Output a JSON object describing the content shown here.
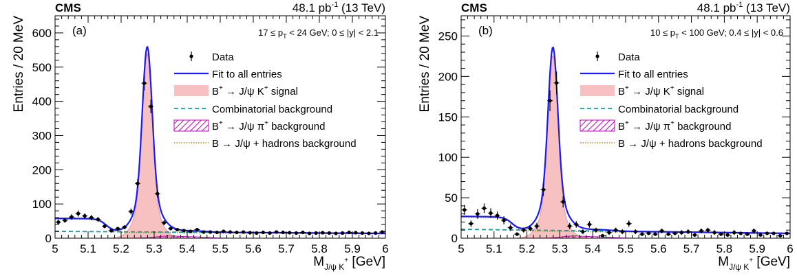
{
  "chart_data": [
    {
      "type": "scatter",
      "panel_label": "(a)",
      "experiment": "CMS",
      "lumi_value": "48.1 pb",
      "lumi_exp": "-1",
      "lumi_energy": "(13 TeV)",
      "cuts": "17 ≤ pT < 24 GeV; 0 ≤ |y| < 2.1",
      "cuts_parts": [
        "17 ≤ p",
        "T",
        " < 24 GeV; 0 ≤ |y| < 2.1"
      ],
      "ylabel": "Entries / 20 MeV",
      "xlabel_main": "M",
      "xlabel_sub": "J/ψ K",
      "xlabel_sup": "+",
      "xlabel_unit": " [GeV]",
      "xlim": [
        5.0,
        6.0
      ],
      "ylim": [
        0,
        650
      ],
      "xticks": [
        5,
        5.1,
        5.2,
        5.3,
        5.4,
        5.5,
        5.6,
        5.7,
        5.8,
        5.9,
        6
      ],
      "xticklabels": [
        "5",
        "5.1",
        "5.2",
        "5.3",
        "5.4",
        "5.5",
        "5.6",
        "5.7",
        "5.8",
        "5.9",
        "6"
      ],
      "yticks": [
        0,
        100,
        200,
        300,
        400,
        500,
        600
      ],
      "yticklabels": [
        "0",
        "100",
        "200",
        "300",
        "400",
        "500",
        "600"
      ],
      "model": {
        "sig_amp": 540,
        "sig_mean": 5.279,
        "sig_sigma": 0.0145,
        "comb_level": 20,
        "comb_slope": -6,
        "jpsipi_amp": 6,
        "hadr_amp": 38,
        "hadr_edge": 5.155
      },
      "data": {
        "x": [
          5.01,
          5.03,
          5.05,
          5.07,
          5.09,
          5.11,
          5.13,
          5.15,
          5.17,
          5.19,
          5.21,
          5.23,
          5.25,
          5.27,
          5.29,
          5.31,
          5.33,
          5.35,
          5.37,
          5.39,
          5.41,
          5.43,
          5.45,
          5.47,
          5.49,
          5.51,
          5.53,
          5.55,
          5.57,
          5.59,
          5.61,
          5.63,
          5.65,
          5.67,
          5.69,
          5.71,
          5.73,
          5.75,
          5.77,
          5.79,
          5.81,
          5.83,
          5.85,
          5.87,
          5.89,
          5.91,
          5.93,
          5.95,
          5.97,
          5.99
        ],
        "y": [
          47,
          52,
          62,
          72,
          65,
          60,
          55,
          35,
          22,
          28,
          32,
          78,
          160,
          453,
          385,
          130,
          45,
          28,
          25,
          22,
          20,
          25,
          18,
          18,
          17,
          20,
          18,
          17,
          18,
          16,
          15,
          17,
          15,
          18,
          17,
          16,
          15,
          17,
          14,
          15,
          16,
          15,
          14,
          15,
          17,
          16,
          15,
          14,
          15,
          18
        ],
        "err": [
          7,
          7,
          8,
          9,
          8,
          8,
          7,
          6,
          5,
          5,
          6,
          9,
          13,
          21,
          20,
          11,
          7,
          5,
          5,
          5,
          4,
          5,
          4,
          4,
          4,
          4,
          4,
          4,
          4,
          4,
          4,
          4,
          4,
          4,
          4,
          4,
          4,
          4,
          4,
          4,
          4,
          4,
          4,
          4,
          4,
          4,
          4,
          4,
          4,
          4
        ]
      }
    },
    {
      "type": "scatter",
      "panel_label": "(b)",
      "experiment": "CMS",
      "lumi_value": "48.1 pb",
      "lumi_exp": "-1",
      "lumi_energy": "(13 TeV)",
      "cuts": "10 ≤ pT < 100 GeV; 0.4 ≤ |y| < 0.6",
      "cuts_parts": [
        "10 ≤ p",
        "T",
        " < 100 GeV; 0.4 ≤ |y| < 0.6"
      ],
      "ylabel": "Entries / 20 MeV",
      "xlabel_main": "M",
      "xlabel_sub": "J/ψ K",
      "xlabel_sup": "+",
      "xlabel_unit": " [GeV]",
      "xlim": [
        5.0,
        6.0
      ],
      "ylim": [
        0,
        275
      ],
      "xticks": [
        5,
        5.1,
        5.2,
        5.3,
        5.4,
        5.5,
        5.6,
        5.7,
        5.8,
        5.9,
        6
      ],
      "xticklabels": [
        "5",
        "5.1",
        "5.2",
        "5.3",
        "5.4",
        "5.5",
        "5.6",
        "5.7",
        "5.8",
        "5.9",
        "6"
      ],
      "yticks": [
        0,
        50,
        100,
        150,
        200,
        250
      ],
      "yticklabels": [
        "0",
        "50",
        "100",
        "150",
        "200",
        "250"
      ],
      "model": {
        "sig_amp": 226,
        "sig_mean": 5.279,
        "sig_sigma": 0.0145,
        "comb_level": 11,
        "comb_slope": -5,
        "jpsipi_amp": 2.5,
        "hadr_amp": 16,
        "hadr_edge": 5.155
      },
      "data": {
        "x": [
          5.01,
          5.03,
          5.05,
          5.07,
          5.09,
          5.11,
          5.13,
          5.15,
          5.17,
          5.19,
          5.21,
          5.23,
          5.25,
          5.27,
          5.29,
          5.31,
          5.33,
          5.35,
          5.37,
          5.39,
          5.41,
          5.43,
          5.45,
          5.47,
          5.49,
          5.51,
          5.53,
          5.55,
          5.57,
          5.59,
          5.61,
          5.63,
          5.65,
          5.67,
          5.69,
          5.71,
          5.73,
          5.75,
          5.77,
          5.79,
          5.81,
          5.83,
          5.85,
          5.87,
          5.89,
          5.91,
          5.93,
          5.95,
          5.97,
          5.99
        ],
        "y": [
          35,
          18,
          30,
          37,
          31,
          28,
          22,
          13,
          5,
          10,
          12,
          15,
          60,
          170,
          192,
          45,
          15,
          17,
          8,
          17,
          10,
          3,
          7,
          10,
          8,
          18,
          8,
          5,
          6,
          5,
          9,
          5,
          6,
          7,
          8,
          4,
          9,
          10,
          7,
          5,
          4,
          7,
          6,
          5,
          9,
          4,
          6,
          6,
          3,
          6
        ],
        "err": [
          6,
          4,
          6,
          6,
          6,
          5,
          5,
          4,
          2,
          3,
          3,
          4,
          8,
          13,
          14,
          7,
          4,
          4,
          3,
          4,
          3,
          2,
          3,
          3,
          3,
          4,
          3,
          2,
          2,
          2,
          3,
          2,
          2,
          3,
          3,
          2,
          3,
          3,
          3,
          2,
          2,
          3,
          2,
          2,
          3,
          2,
          2,
          2,
          2,
          2
        ]
      }
    }
  ],
  "legend": {
    "data": "Data",
    "fit": "Fit to all entries",
    "signal_parts": [
      "B",
      "+",
      " → J/ψ K",
      "+",
      " signal"
    ],
    "combinatorial": "Combinatorial background",
    "jpsipi_parts": [
      "B",
      "+",
      " → J/ψ π",
      "+",
      " background"
    ],
    "hadrons": "B → J/ψ + hadrons background"
  },
  "colors": {
    "fit": "#1a1aff",
    "signal_fill": "#f7c1c1",
    "signal_line": "#e08a8a",
    "combinatorial": "#1a9e9e",
    "jpsipi": "#c000c0",
    "hadrons": "#b8860b",
    "data": "#000000"
  }
}
